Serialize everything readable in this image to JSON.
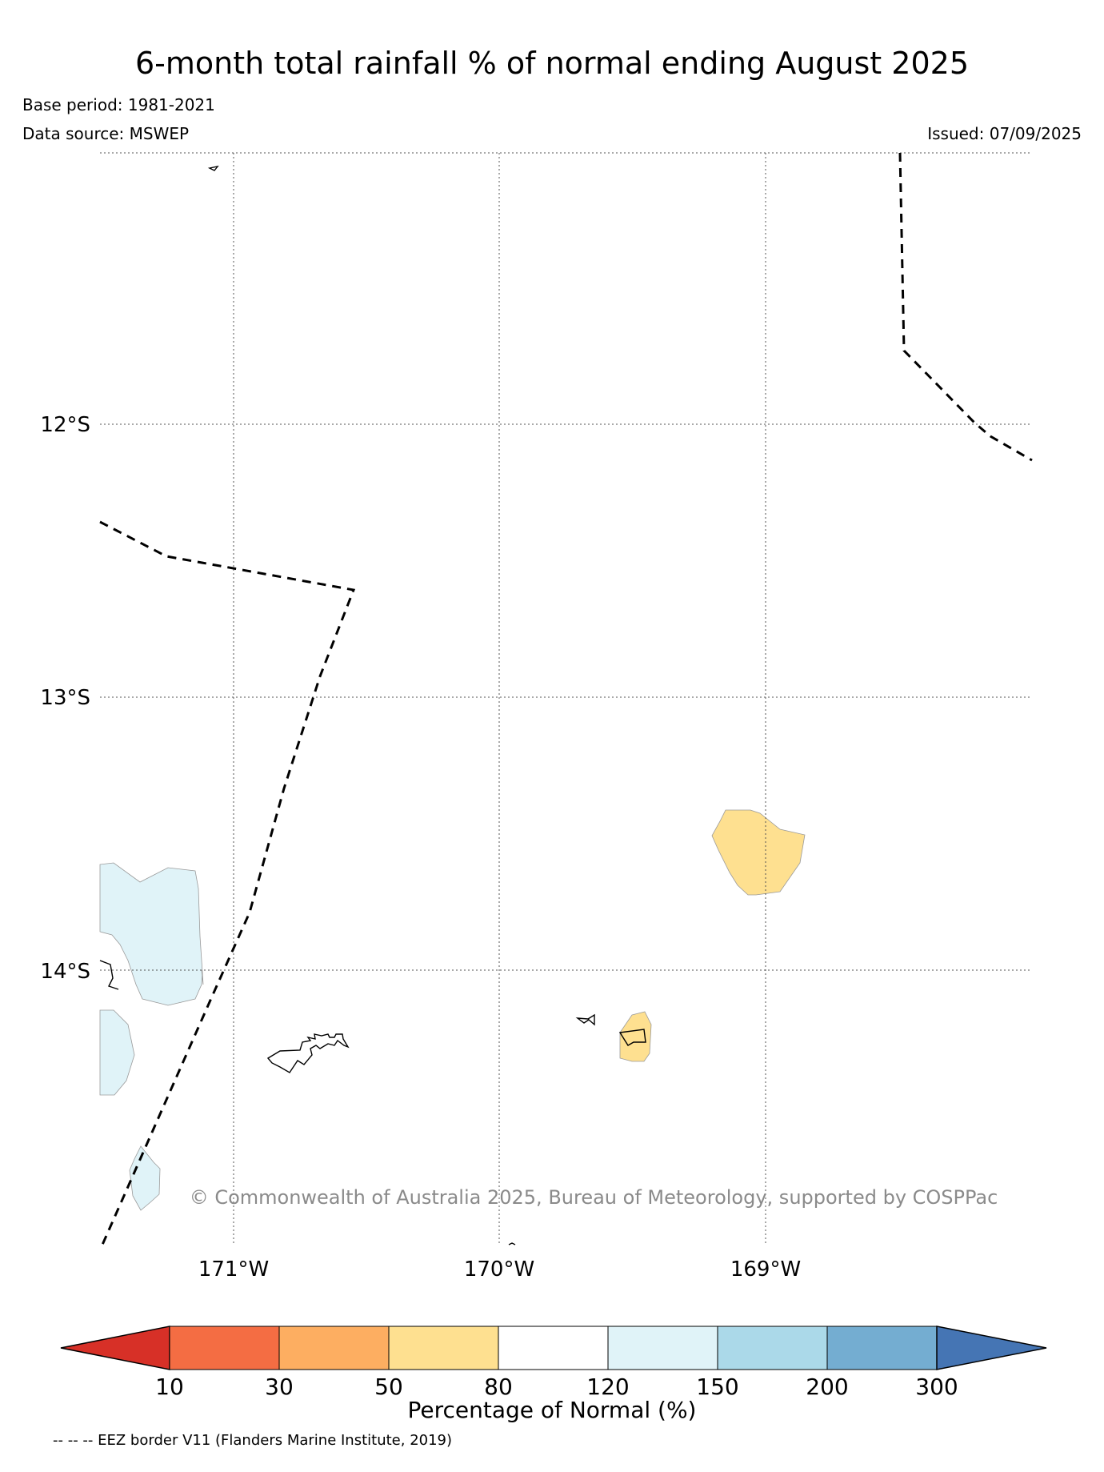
{
  "map": {
    "title": "6-month total rainfall % of normal ending August 2025",
    "base_period": "Base period: 1981-2021",
    "data_source": "Data source: MSWEP",
    "issued": "Issued: 07/09/2025",
    "copyright": "© Commonwealth of Australia 2025, Bureau of Meteorology, supported by COSPPac",
    "latitude_labels": [
      "12°S",
      "13°S",
      "14°S"
    ],
    "longitude_labels": [
      "171°W",
      "170°W",
      "169°W"
    ],
    "extent": {
      "lon_min": -171.5,
      "lon_max": -168.0,
      "lat_north": -11.0,
      "lat_south": -15.0
    },
    "eez_legend": "-- -- -- EEZ border V11 (Flanders Marine Institute, 2019)",
    "regions": [
      {
        "name": "west-islands-region",
        "category": "120-150"
      },
      {
        "name": "manua-east-region",
        "category": "50-80"
      },
      {
        "name": "southern-island-region",
        "category": "50-80"
      }
    ]
  },
  "colorbar": {
    "label": "Percentage of Normal (%)",
    "ticks": [
      "10",
      "30",
      "50",
      "80",
      "120",
      "150",
      "200",
      "300"
    ],
    "colors": {
      "below_10": "#d73027",
      "10_30": "#f46d43",
      "30_50": "#fdae61",
      "50_80": "#fee090",
      "80_120": "#ffffff",
      "120_150": "#e0f3f8",
      "150_200": "#abd9e9",
      "200_300": "#74add1",
      "above_300": "#4575b4"
    }
  }
}
